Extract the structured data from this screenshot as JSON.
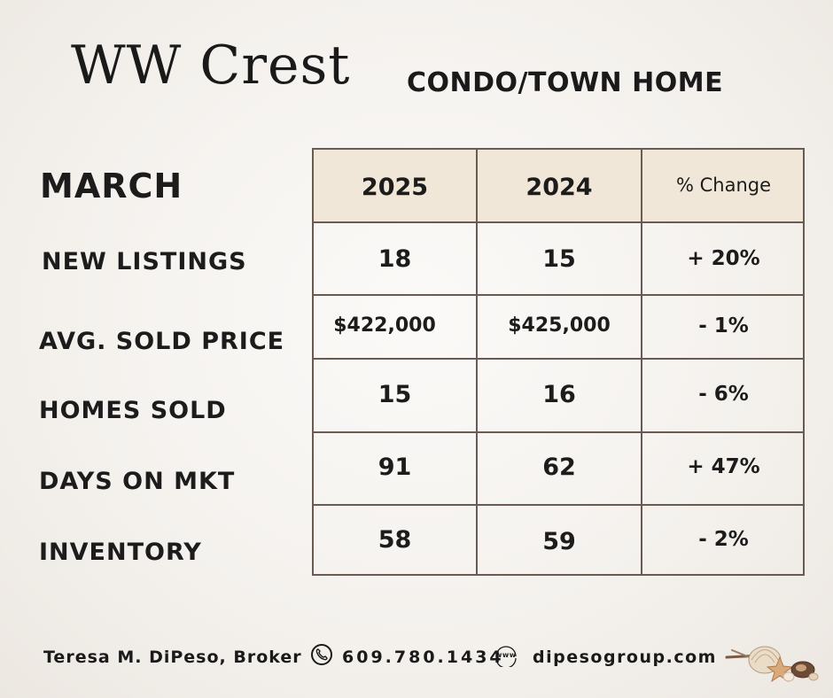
{
  "header": {
    "title": "WW Crest",
    "subtitle": "CONDO/TOWN HOME"
  },
  "table": {
    "period": "MARCH",
    "columns": [
      "2025",
      "2024",
      "% Change"
    ],
    "rows": [
      {
        "label": "NEW LISTINGS",
        "v2025": "18",
        "v2024": "15",
        "change": "+ 20%"
      },
      {
        "label": "AVG. SOLD PRICE",
        "v2025": "$422,000",
        "v2024": "$425,000",
        "change": "- 1%"
      },
      {
        "label": "HOMES SOLD",
        "v2025": "15",
        "v2024": "16",
        "change": "- 6%"
      },
      {
        "label": "DAYS ON MKT",
        "v2025": "91",
        "v2024": "62",
        "change": "+ 47%"
      },
      {
        "label": "INVENTORY",
        "v2025": "58",
        "v2024": "59",
        "change": "- 2%"
      }
    ]
  },
  "footer": {
    "agent": "Teresa M. DiPeso, Broker",
    "phone": "609.780.1434",
    "www_label": "www",
    "website": "dipesogroup.com"
  },
  "icons": {
    "phone": "phone-icon",
    "web": "globe-www-icon",
    "decoration": "seashells-icon"
  },
  "colors": {
    "header_fill": "#f0e7d8",
    "border": "#6b5a52",
    "text": "#1a1a1a"
  }
}
